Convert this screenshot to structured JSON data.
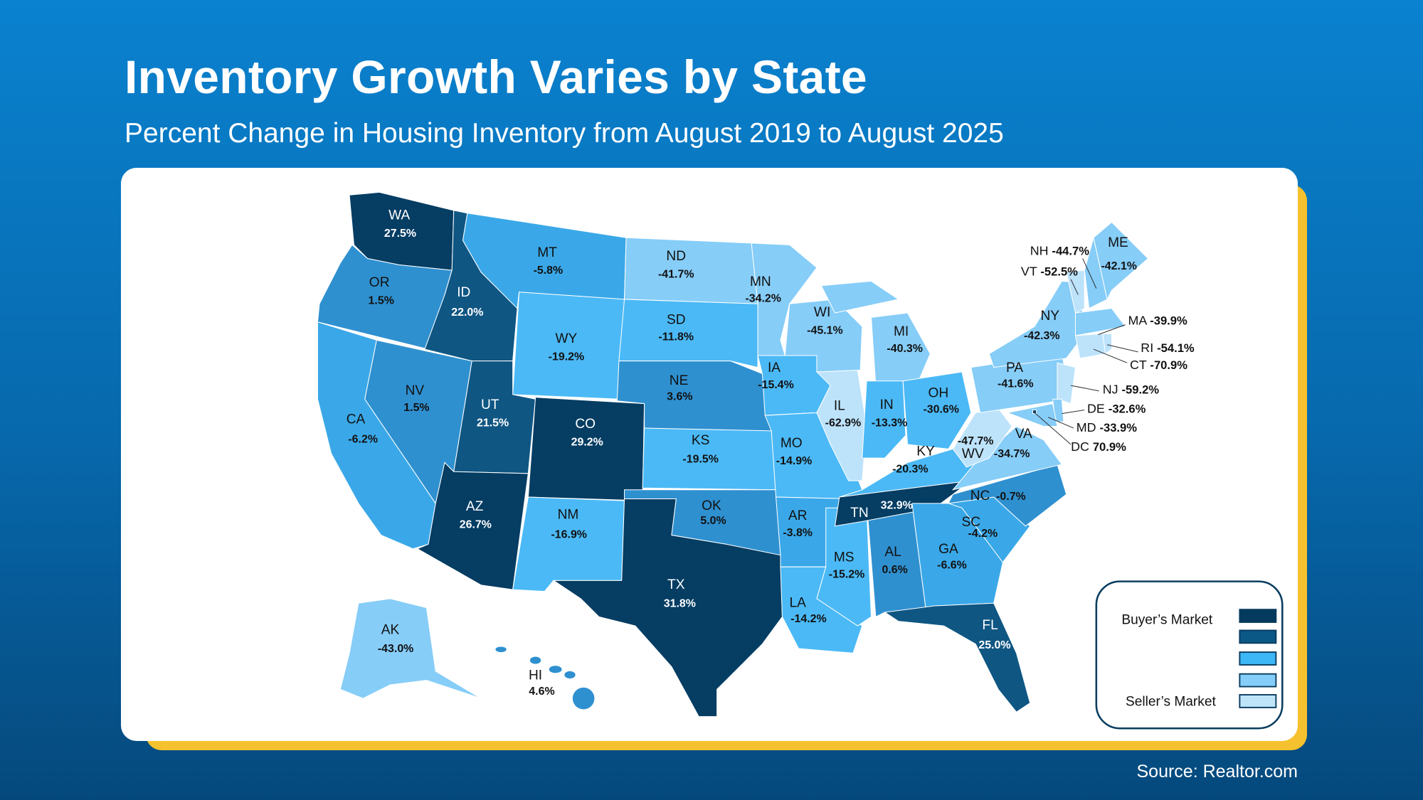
{
  "title": "Inventory Growth Varies by State",
  "subtitle": "Percent Change in Housing Inventory from August 2019 to August 2025",
  "source": "Source: Realtor.com",
  "legend": {
    "top_label": "Buyer’s Market",
    "bottom_label": "Seller’s Market",
    "colors": [
      "#033a5e",
      "#0b5786",
      "#3db7f5",
      "#85cef9",
      "#bfe5fb"
    ]
  },
  "tier_colors": {
    "t1": "#053d63",
    "t2": "#0f5683",
    "t3": "#2f90d0",
    "t4": "#3aa8e8",
    "t5": "#4bb9f6",
    "t6": "#86cdf8",
    "t7": "#bde3fb"
  },
  "states": [
    {
      "abbr": "WA",
      "value": "27.5%",
      "tier": "t1"
    },
    {
      "abbr": "OR",
      "value": "1.5%",
      "tier": "t3"
    },
    {
      "abbr": "CA",
      "value": "-6.2%",
      "tier": "t4"
    },
    {
      "abbr": "NV",
      "value": "1.5%",
      "tier": "t3"
    },
    {
      "abbr": "ID",
      "value": "22.0%",
      "tier": "t2"
    },
    {
      "abbr": "MT",
      "value": "-5.8%",
      "tier": "t4"
    },
    {
      "abbr": "WY",
      "value": "-19.2%",
      "tier": "t5"
    },
    {
      "abbr": "UT",
      "value": "21.5%",
      "tier": "t2"
    },
    {
      "abbr": "CO",
      "value": "29.2%",
      "tier": "t1"
    },
    {
      "abbr": "AZ",
      "value": "26.7%",
      "tier": "t1"
    },
    {
      "abbr": "NM",
      "value": "-16.9%",
      "tier": "t5"
    },
    {
      "abbr": "ND",
      "value": "-41.7%",
      "tier": "t6"
    },
    {
      "abbr": "SD",
      "value": "-11.8%",
      "tier": "t5"
    },
    {
      "abbr": "NE",
      "value": "3.6%",
      "tier": "t3"
    },
    {
      "abbr": "KS",
      "value": "-19.5%",
      "tier": "t5"
    },
    {
      "abbr": "OK",
      "value": "5.0%",
      "tier": "t3"
    },
    {
      "abbr": "TX",
      "value": "31.8%",
      "tier": "t1"
    },
    {
      "abbr": "MN",
      "value": "-34.2%",
      "tier": "t6"
    },
    {
      "abbr": "IA",
      "value": "-15.4%",
      "tier": "t5"
    },
    {
      "abbr": "MO",
      "value": "-14.9%",
      "tier": "t5"
    },
    {
      "abbr": "AR",
      "value": "-3.8%",
      "tier": "t4"
    },
    {
      "abbr": "LA",
      "value": "-14.2%",
      "tier": "t5"
    },
    {
      "abbr": "MS",
      "value": "-15.2%",
      "tier": "t5"
    },
    {
      "abbr": "AL",
      "value": "0.6%",
      "tier": "t3"
    },
    {
      "abbr": "IL",
      "value": "-62.9%",
      "tier": "t7"
    },
    {
      "abbr": "WI",
      "value": "-45.1%",
      "tier": "t6"
    },
    {
      "abbr": "MI",
      "value": "-40.3%",
      "tier": "t6"
    },
    {
      "abbr": "IN",
      "value": "-13.3%",
      "tier": "t5"
    },
    {
      "abbr": "OH",
      "value": "-30.6%",
      "tier": "t5"
    },
    {
      "abbr": "KY",
      "value": "-20.3%",
      "tier": "t5"
    },
    {
      "abbr": "TN",
      "value": "32.9%",
      "tier": "t1"
    },
    {
      "abbr": "GA",
      "value": "-6.6%",
      "tier": "t4"
    },
    {
      "abbr": "SC",
      "value": "-4.2%",
      "tier": "t4"
    },
    {
      "abbr": "NC",
      "value": "-0.7%",
      "tier": "t3"
    },
    {
      "abbr": "FL",
      "value": "25.0%",
      "tier": "t2"
    },
    {
      "abbr": "VA",
      "value": "-34.7%",
      "tier": "t6"
    },
    {
      "abbr": "WV",
      "value": "-47.7%",
      "tier": "t7"
    },
    {
      "abbr": "PA",
      "value": "-41.6%",
      "tier": "t6"
    },
    {
      "abbr": "NY",
      "value": "-42.3%",
      "tier": "t6"
    },
    {
      "abbr": "VT",
      "value": "-52.5%",
      "tier": "t7"
    },
    {
      "abbr": "NH",
      "value": "-44.7%",
      "tier": "t6"
    },
    {
      "abbr": "ME",
      "value": "-42.1%",
      "tier": "t6"
    },
    {
      "abbr": "MA",
      "value": "-39.9%",
      "tier": "t6"
    },
    {
      "abbr": "RI",
      "value": "-54.1%",
      "tier": "t7"
    },
    {
      "abbr": "CT",
      "value": "-70.9%",
      "tier": "t7"
    },
    {
      "abbr": "NJ",
      "value": "-59.2%",
      "tier": "t7"
    },
    {
      "abbr": "DE",
      "value": "-32.6%",
      "tier": "t6"
    },
    {
      "abbr": "MD",
      "value": "-33.9%",
      "tier": "t6"
    },
    {
      "abbr": "DC",
      "value": "70.9%",
      "tier": "t1"
    },
    {
      "abbr": "AK",
      "value": "-43.0%",
      "tier": "t6"
    },
    {
      "abbr": "HI",
      "value": "4.6%",
      "tier": "t3"
    }
  ]
}
